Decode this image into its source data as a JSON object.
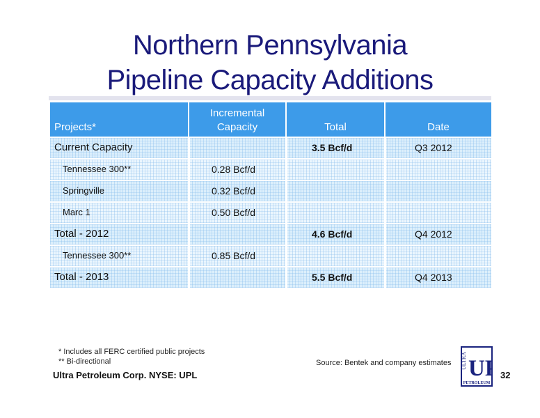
{
  "title": {
    "line1": "Northern Pennsylvania",
    "line2": "Pipeline Capacity Additions"
  },
  "table": {
    "headers": {
      "projects": "Projects*",
      "incremental_line1": "Incremental",
      "incremental_line2": "Capacity",
      "total": "Total",
      "date": "Date"
    },
    "rows": [
      {
        "project": "Current Capacity",
        "incremental": "",
        "total": "3.5 Bcf/d",
        "date": "Q3 2012"
      },
      {
        "project": "Tennessee 300**",
        "incremental": "0.28 Bcf/d",
        "total": "",
        "date": ""
      },
      {
        "project": "Springville",
        "incremental": "0.32 Bcf/d",
        "total": "",
        "date": ""
      },
      {
        "project": "Marc 1",
        "incremental": "0.50 Bcf/d",
        "total": "",
        "date": ""
      },
      {
        "project": "Total - 2012",
        "incremental": "",
        "total": "4.6 Bcf/d",
        "date": "Q4 2012"
      },
      {
        "project": "Tennessee 300**",
        "incremental": "0.85 Bcf/d",
        "total": "",
        "date": ""
      },
      {
        "project": "Total - 2013",
        "incremental": "",
        "total": "5.5 Bcf/d",
        "date": "Q4 2013"
      }
    ]
  },
  "footnotes": {
    "note1": "* Includes all FERC certified public projects",
    "note2": "** Bi-directional"
  },
  "source": "Source: Bentek and company estimates",
  "company": "Ultra Petroleum Corp. NYSE: UPL",
  "page_number": "32",
  "logo": {
    "top_text": "ULTRA",
    "letters": "UP",
    "bottom_text": "PETROLEUM"
  },
  "colors": {
    "title": "#1a1a7a",
    "header_bg": "#3d9be9",
    "row_bg": "#dceffc",
    "logo": "#1a237e"
  }
}
